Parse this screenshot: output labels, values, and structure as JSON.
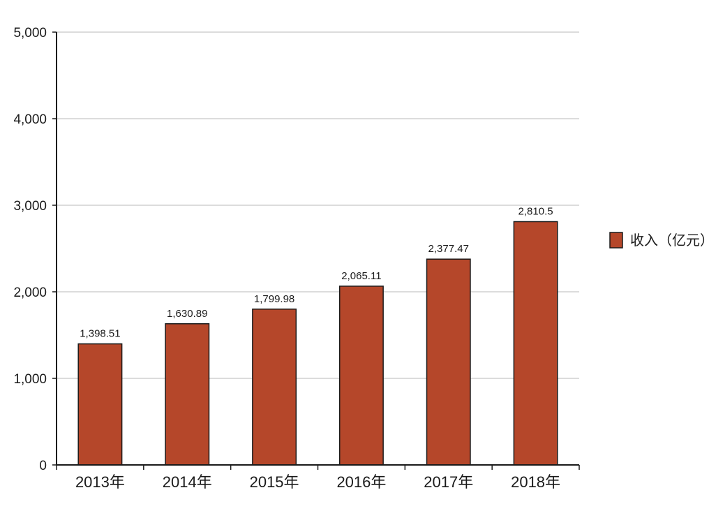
{
  "chart_data": {
    "type": "bar",
    "title": "",
    "xlabel": "",
    "ylabel": "",
    "categories": [
      "2013年",
      "2014年",
      "2015年",
      "2016年",
      "2017年",
      "2018年"
    ],
    "series": [
      {
        "name": "收入（亿元）",
        "values": [
          1398.51,
          1630.89,
          1799.98,
          2065.11,
          2377.47,
          2810.5
        ],
        "labels": [
          "1,398.51",
          "1,630.89",
          "1,799.98",
          "2,065.11",
          "2,377.47",
          "2,810.5"
        ],
        "color": "#b5472a",
        "edge_color": "#1a1a1a"
      }
    ],
    "ylim": [
      0,
      5000
    ],
    "yticks": [
      0,
      1000,
      2000,
      3000,
      4000,
      5000
    ],
    "ytick_labels": [
      "0",
      "1,000",
      "2,000",
      "3,000",
      "4,000",
      "5,000"
    ],
    "grid": true,
    "grid_color": "#d0d0d0",
    "legend": "right"
  }
}
